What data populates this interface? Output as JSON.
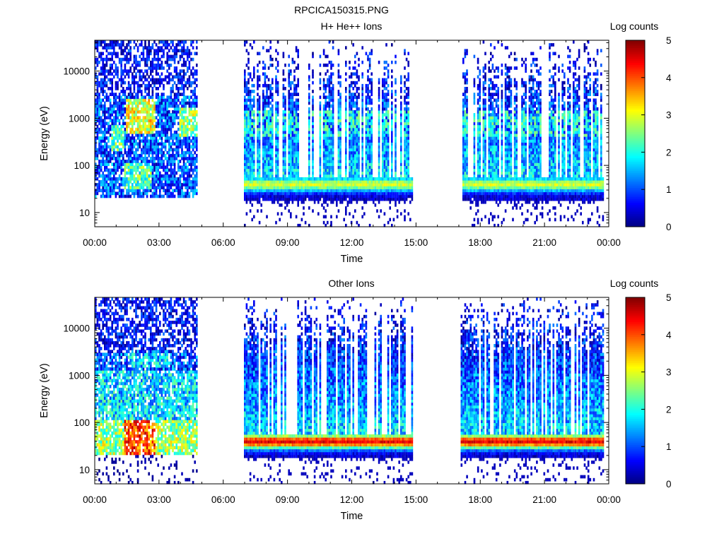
{
  "figure": {
    "title": "RPCICA150315.PNG"
  },
  "chart_data": [
    {
      "type": "heatmap",
      "title": "H+ He++ Ions",
      "xlabel": "Time",
      "ylabel": "Energy (eV)",
      "y_scale": "log",
      "xlim": [
        "00:00",
        "24:00"
      ],
      "ylim": [
        5,
        45000
      ],
      "x_ticks": [
        "00:00",
        "03:00",
        "06:00",
        "09:00",
        "12:00",
        "15:00",
        "18:00",
        "21:00",
        "00:00"
      ],
      "y_ticks": [
        "10",
        "100",
        "1000",
        "10000"
      ],
      "colorbar": {
        "label": "Log counts",
        "min": 0,
        "max": 5,
        "ticks": [
          "0",
          "1",
          "2",
          "3",
          "4",
          "5"
        ],
        "colormap": "jet"
      },
      "data_intervals": [
        {
          "start": "00:00",
          "end": "04:48",
          "description": "dense broadband"
        },
        {
          "start": "06:58",
          "end": "14:48",
          "description": "banded, peak ~30-50 eV"
        },
        {
          "start": "17:10",
          "end": "23:45",
          "description": "banded, peak ~30-60 eV"
        }
      ],
      "notable_bands": [
        {
          "time_range": [
            "01:30",
            "02:45"
          ],
          "energy_range_eV": [
            600,
            2500
          ],
          "log_counts": 3.2
        },
        {
          "time_range": [
            "04:00",
            "04:45"
          ],
          "energy_range_eV": [
            400,
            1500
          ],
          "log_counts": 3.0
        },
        {
          "time_range": [
            "07:00",
            "14:48"
          ],
          "energy_range_eV": [
            25,
            60
          ],
          "log_counts": 2.8
        },
        {
          "time_range": [
            "17:10",
            "23:45"
          ],
          "energy_range_eV": [
            25,
            70
          ],
          "log_counts": 3.2
        }
      ]
    },
    {
      "type": "heatmap",
      "title": "Other Ions",
      "xlabel": "Time",
      "ylabel": "Energy (eV)",
      "y_scale": "log",
      "xlim": [
        "00:00",
        "24:00"
      ],
      "ylim": [
        5,
        45000
      ],
      "x_ticks": [
        "00:00",
        "03:00",
        "06:00",
        "09:00",
        "12:00",
        "15:00",
        "18:00",
        "21:00",
        "00:00"
      ],
      "y_ticks": [
        "10",
        "100",
        "1000",
        "10000"
      ],
      "colorbar": {
        "label": "Log counts",
        "min": 0,
        "max": 5,
        "ticks": [
          "0",
          "1",
          "2",
          "3",
          "4",
          "5"
        ],
        "colormap": "jet"
      },
      "data_intervals": [
        {
          "start": "00:00",
          "end": "04:48",
          "description": "dense broadband"
        },
        {
          "start": "06:58",
          "end": "14:48",
          "description": "banded, peak ~30-50 eV"
        },
        {
          "start": "17:05",
          "end": "23:45",
          "description": "banded, peak ~30-50 eV"
        }
      ],
      "notable_bands": [
        {
          "time_range": [
            "01:20",
            "02:45"
          ],
          "energy_range_eV": [
            25,
            100
          ],
          "log_counts": 4.3
        },
        {
          "time_range": [
            "07:00",
            "14:48"
          ],
          "energy_range_eV": [
            28,
            55
          ],
          "log_counts": 4.4
        },
        {
          "time_range": [
            "17:05",
            "23:45"
          ],
          "energy_range_eV": [
            28,
            55
          ],
          "log_counts": 4.4
        }
      ]
    }
  ]
}
